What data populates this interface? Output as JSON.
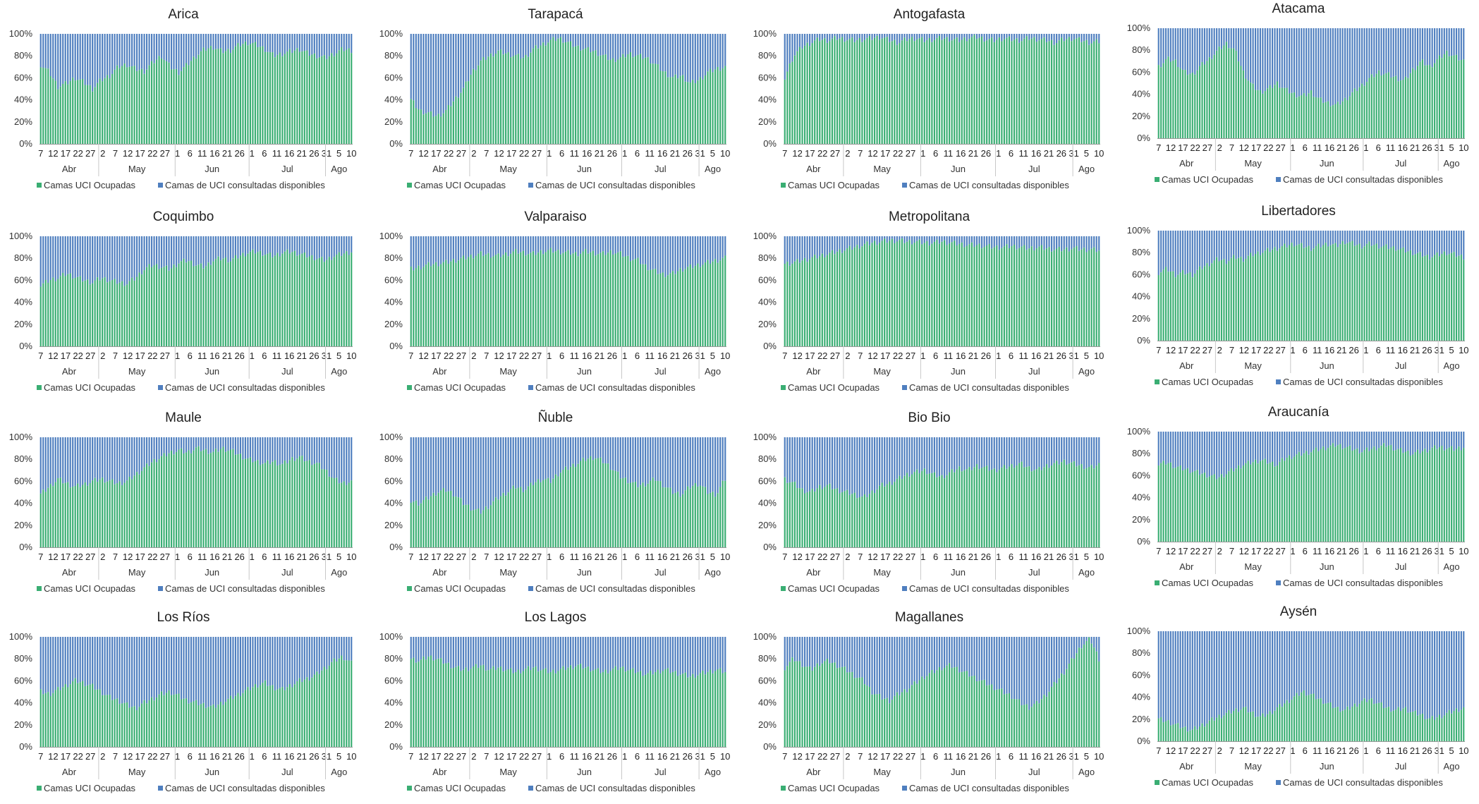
{
  "chart_data": {
    "type": "bar",
    "stacked": true,
    "normalized": true,
    "series_names": [
      "Camas UCI Ocupadas",
      "Camas de UCI consultadas disponibles"
    ],
    "series_colors": [
      "#3aae73",
      "#4f7fbf"
    ],
    "y_ticks": [
      "0%",
      "20%",
      "40%",
      "60%",
      "80%",
      "100%"
    ],
    "ylim": [
      0,
      100
    ],
    "x_tick_labels": [
      "7",
      "12",
      "17",
      "22",
      "27",
      "2",
      "7",
      "12",
      "17",
      "22",
      "27",
      "1",
      "6",
      "11",
      "16",
      "21",
      "26",
      "1",
      "6",
      "11",
      "16",
      "21",
      "26",
      "31",
      "5",
      "10"
    ],
    "months": [
      {
        "name": "Abr",
        "start_day": 0,
        "end_day": 24
      },
      {
        "name": "May",
        "start_day": 24,
        "end_day": 55
      },
      {
        "name": "Jun",
        "start_day": 55,
        "end_day": 85
      },
      {
        "name": "Jul",
        "start_day": 85,
        "end_day": 116
      },
      {
        "name": "Ago",
        "start_day": 116,
        "end_day": 127
      }
    ],
    "n_days": 127,
    "legend_position": "bottom",
    "charts": [
      {
        "title": "Arica",
        "occupied_pct_profile": [
          72,
          65,
          52,
          55,
          60,
          56,
          50,
          58,
          62,
          70,
          72,
          68,
          66,
          74,
          80,
          70,
          65,
          72,
          80,
          86,
          88,
          84,
          85,
          90,
          92,
          90,
          86,
          80,
          82,
          84,
          86,
          82,
          80,
          78,
          82,
          86,
          85
        ]
      },
      {
        "title": "Tarapacá",
        "occupied_pct_profile": [
          40,
          30,
          28,
          25,
          30,
          40,
          50,
          65,
          75,
          80,
          84,
          82,
          80,
          78,
          86,
          90,
          94,
          96,
          92,
          88,
          86,
          84,
          80,
          76,
          78,
          82,
          80,
          78,
          72,
          65,
          60,
          62,
          55,
          58,
          65,
          68,
          70
        ]
      },
      {
        "title": "Antogafasta",
        "occupied_pct_profile": [
          60,
          80,
          88,
          92,
          95,
          94,
          96,
          95,
          94,
          95,
          96,
          97,
          94,
          92,
          95,
          96,
          94,
          95,
          96,
          95,
          94,
          96,
          97,
          95,
          94,
          96,
          95,
          94,
          96,
          95,
          94,
          92,
          95,
          96,
          94,
          92,
          93
        ]
      },
      {
        "title": "Atacama",
        "occupied_pct_profile": [
          65,
          72,
          70,
          60,
          58,
          66,
          72,
          80,
          86,
          80,
          60,
          48,
          42,
          45,
          50,
          44,
          40,
          38,
          42,
          35,
          32,
          30,
          35,
          42,
          48,
          55,
          60,
          58,
          55,
          52,
          62,
          70,
          65,
          72,
          78,
          74,
          70
        ]
      },
      {
        "title": "Coquimbo",
        "occupied_pct_profile": [
          55,
          60,
          62,
          66,
          63,
          60,
          58,
          62,
          60,
          58,
          57,
          62,
          70,
          74,
          72,
          70,
          76,
          78,
          74,
          72,
          78,
          80,
          78,
          82,
          85,
          86,
          84,
          82,
          85,
          86,
          84,
          82,
          80,
          78,
          82,
          84,
          86
        ]
      },
      {
        "title": "Valparaiso",
        "occupied_pct_profile": [
          70,
          72,
          74,
          75,
          76,
          78,
          80,
          82,
          84,
          83,
          82,
          84,
          86,
          85,
          84,
          86,
          87,
          86,
          85,
          84,
          86,
          85,
          84,
          86,
          84,
          80,
          78,
          72,
          68,
          65,
          66,
          70,
          72,
          74,
          76,
          78,
          80
        ]
      },
      {
        "title": "Metropolitana",
        "occupied_pct_profile": [
          75,
          76,
          78,
          80,
          82,
          84,
          86,
          88,
          90,
          92,
          94,
          95,
          96,
          96,
          95,
          95,
          94,
          94,
          95,
          94,
          93,
          92,
          92,
          91,
          90,
          90,
          91,
          90,
          89,
          90,
          89,
          88,
          88,
          89,
          88,
          88,
          87
        ]
      },
      {
        "title": "Libertadores",
        "occupied_pct_profile": [
          62,
          65,
          60,
          62,
          60,
          66,
          70,
          74,
          72,
          76,
          74,
          78,
          80,
          82,
          84,
          86,
          88,
          86,
          84,
          86,
          88,
          86,
          90,
          88,
          86,
          88,
          86,
          85,
          84,
          82,
          80,
          78,
          76,
          78,
          80,
          78,
          76
        ]
      },
      {
        "title": "Maule",
        "occupied_pct_profile": [
          48,
          55,
          62,
          58,
          55,
          57,
          60,
          62,
          60,
          58,
          60,
          66,
          72,
          78,
          82,
          86,
          88,
          86,
          90,
          88,
          86,
          90,
          88,
          84,
          80,
          78,
          76,
          78,
          75,
          80,
          82,
          78,
          76,
          70,
          62,
          58,
          60
        ]
      },
      {
        "title": "Ñuble",
        "occupied_pct_profile": [
          42,
          40,
          45,
          50,
          52,
          48,
          40,
          35,
          32,
          38,
          45,
          50,
          55,
          52,
          58,
          62,
          60,
          68,
          72,
          76,
          80,
          82,
          78,
          72,
          64,
          60,
          56,
          58,
          62,
          56,
          50,
          48,
          55,
          58,
          50,
          48,
          62
        ]
      },
      {
        "title": "Bio Bio",
        "occupied_pct_profile": [
          62,
          58,
          52,
          50,
          55,
          56,
          52,
          50,
          48,
          45,
          50,
          56,
          58,
          62,
          66,
          68,
          70,
          66,
          64,
          68,
          72,
          70,
          74,
          72,
          70,
          72,
          74,
          76,
          72,
          70,
          74,
          76,
          78,
          76,
          74,
          72,
          75
        ]
      },
      {
        "title": "Araucanía",
        "occupied_pct_profile": [
          70,
          72,
          68,
          66,
          64,
          62,
          60,
          58,
          62,
          66,
          70,
          72,
          74,
          72,
          70,
          76,
          78,
          80,
          82,
          84,
          86,
          88,
          86,
          84,
          82,
          84,
          86,
          88,
          84,
          82,
          80,
          82,
          84,
          86,
          85,
          84,
          86
        ]
      },
      {
        "title": "Los Ríos",
        "occupied_pct_profile": [
          50,
          48,
          52,
          56,
          60,
          58,
          55,
          50,
          45,
          42,
          38,
          35,
          40,
          44,
          48,
          50,
          46,
          42,
          40,
          38,
          36,
          40,
          44,
          48,
          52,
          56,
          58,
          54,
          52,
          56,
          60,
          62,
          66,
          72,
          78,
          82,
          76
        ]
      },
      {
        "title": "Los Lagos",
        "occupied_pct_profile": [
          80,
          78,
          82,
          80,
          76,
          72,
          70,
          72,
          74,
          70,
          72,
          70,
          68,
          70,
          72,
          70,
          68,
          70,
          72,
          74,
          72,
          70,
          68,
          70,
          72,
          70,
          68,
          66,
          68,
          70,
          68,
          66,
          64,
          66,
          68,
          70,
          68
        ]
      },
      {
        "title": "Magallanes",
        "occupied_pct_profile": [
          72,
          80,
          75,
          70,
          76,
          78,
          74,
          70,
          65,
          60,
          50,
          45,
          42,
          48,
          52,
          58,
          64,
          68,
          72,
          74,
          70,
          66,
          62,
          58,
          54,
          50,
          46,
          40,
          36,
          40,
          48,
          58,
          68,
          80,
          92,
          98,
          80
        ]
      },
      {
        "title": "Aysén",
        "occupied_pct_profile": [
          20,
          18,
          15,
          12,
          10,
          14,
          18,
          22,
          25,
          28,
          30,
          26,
          22,
          25,
          30,
          35,
          40,
          45,
          42,
          38,
          34,
          30,
          28,
          32,
          36,
          38,
          34,
          30,
          28,
          30,
          26,
          24,
          20,
          22,
          25,
          28,
          30
        ]
      }
    ]
  }
}
